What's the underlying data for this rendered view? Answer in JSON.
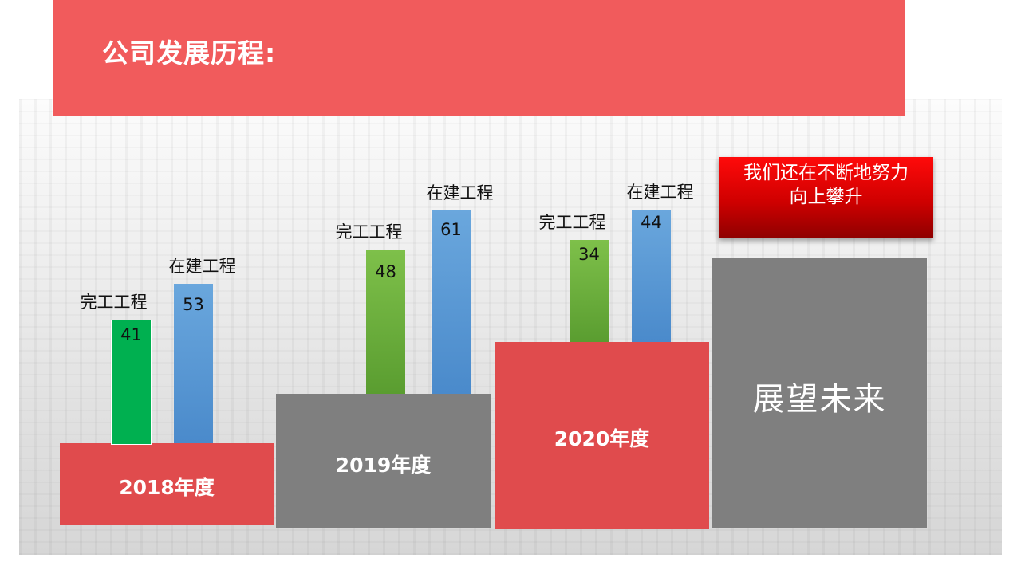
{
  "title": "公司发展历程:",
  "chart_data": {
    "type": "bar",
    "categories": [
      "2018年度",
      "2019年度",
      "2020年度"
    ],
    "series": [
      {
        "name": "完工工程",
        "values": [
          41,
          48,
          34
        ]
      },
      {
        "name": "在建工程",
        "values": [
          53,
          61,
          44
        ]
      }
    ]
  },
  "callout": {
    "line1": "我们还在不断地努力",
    "line2": "向上攀升"
  },
  "future_label": "展望未来",
  "colors": {
    "header": "#f15b5c",
    "block_red": "#e04b4d",
    "block_gray": "#7f7f7f",
    "completed_2018": "#00b050",
    "completed": "#6aab3b",
    "in_progress": "#5b9bd5",
    "callout": "#e00000"
  }
}
